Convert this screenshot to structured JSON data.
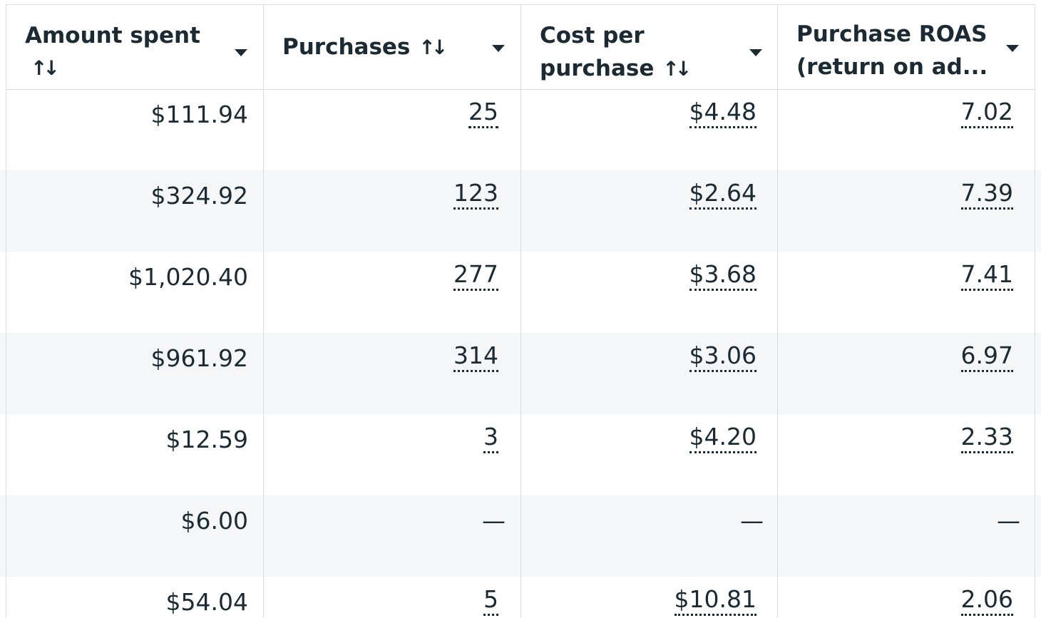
{
  "columns": [
    {
      "label": "Amount spent",
      "sort_icon": "sort-arrows-icon",
      "menu_icon": "caret-down-icon"
    },
    {
      "label": "Purchases",
      "sort_icon": "sort-arrows-icon",
      "menu_icon": "caret-down-icon"
    },
    {
      "label": "Cost per purchase",
      "line1": "Cost per",
      "line2": "purchase",
      "sort_icon": "sort-arrows-icon",
      "menu_icon": "caret-down-icon"
    },
    {
      "label": "Purchase ROAS (return on ad...",
      "line1": "Purchase ROAS",
      "line2": "(return on ad...",
      "menu_icon": "caret-down-icon"
    }
  ],
  "sort_glyph": "↑↓",
  "rows": [
    {
      "amount_spent": "$111.94",
      "purchases": "25",
      "cost_per_purchase": "$4.48",
      "roas": "7.02"
    },
    {
      "amount_spent": "$324.92",
      "purchases": "123",
      "cost_per_purchase": "$2.64",
      "roas": "7.39"
    },
    {
      "amount_spent": "$1,020.40",
      "purchases": "277",
      "cost_per_purchase": "$3.68",
      "roas": "7.41"
    },
    {
      "amount_spent": "$961.92",
      "purchases": "314",
      "cost_per_purchase": "$3.06",
      "roas": "6.97"
    },
    {
      "amount_spent": "$12.59",
      "purchases": "3",
      "cost_per_purchase": "$4.20",
      "roas": "2.33"
    },
    {
      "amount_spent": "$6.00",
      "purchases": "—",
      "cost_per_purchase": "—",
      "roas": "—"
    },
    {
      "amount_spent": "$54.04",
      "purchases": "5",
      "cost_per_purchase": "$10.81",
      "roas": "2.06"
    }
  ],
  "colors": {
    "text": "#1c2b33",
    "border": "#dadde1",
    "row_shade": "#f5f6f7"
  }
}
